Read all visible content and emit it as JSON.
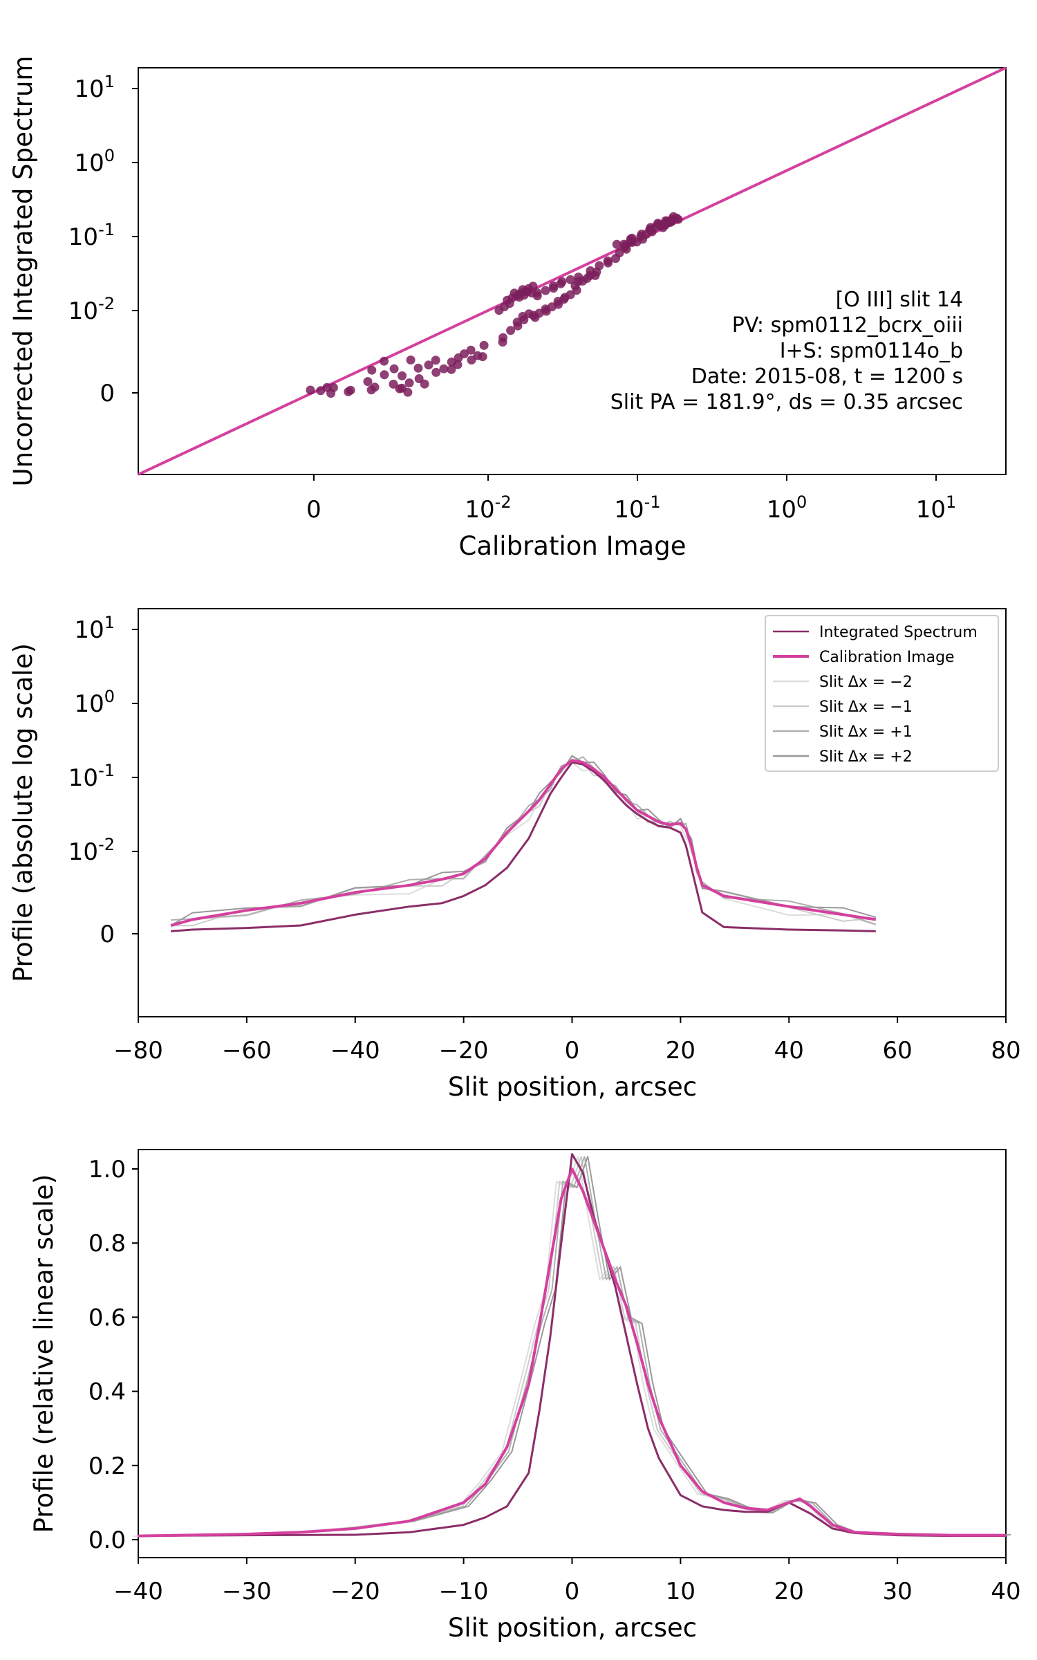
{
  "chart_data": [
    {
      "type": "scatter",
      "xlabel": "Calibration Image",
      "ylabel": "Uncorrected Integrated Spectrum",
      "xscale": "symlog",
      "yscale": "symlog",
      "xticks": [
        "0",
        "10^-2",
        "10^-1",
        "10^0",
        "10^1"
      ],
      "yticks": [
        "0",
        "10^-2",
        "10^-1",
        "10^0",
        "10^1"
      ],
      "annotation": [
        "[O III] slit 14",
        "PV: spm0112_bcrx_oiii",
        "I+S: spm0114o_b",
        "Date: 2015-08, t = 1200 s",
        "Slit PA = 181.9°, ds = 0.35 arcsec"
      ],
      "reference_line": "y = x",
      "colors": {
        "points": "#7b1f5c",
        "line": "#d4409e"
      },
      "points": [
        [
          0.0,
          0.0
        ],
        [
          0.0003,
          0.0006
        ],
        [
          0.0006,
          0.0002
        ],
        [
          0.0009,
          0.0008
        ],
        [
          0.0012,
          0.0004
        ],
        [
          0.0015,
          0.0011
        ],
        [
          0.0018,
          0.0006
        ],
        [
          0.002,
          0.0013
        ],
        [
          0.0022,
          0.0008
        ],
        [
          0.0024,
          0.0015
        ],
        [
          0.0026,
          0.0009
        ],
        [
          0.0028,
          0.0014
        ],
        [
          0.003,
          0.0011
        ],
        [
          0.0033,
          0.0017
        ],
        [
          0.0036,
          0.0012
        ],
        [
          0.004,
          0.0018
        ],
        [
          0.0043,
          0.0014
        ],
        [
          0.0046,
          0.002
        ],
        [
          0.005,
          0.0015
        ],
        [
          0.0054,
          0.0022
        ],
        [
          0.0058,
          0.0017
        ],
        [
          0.0062,
          0.0024
        ],
        [
          0.0066,
          0.0019
        ],
        [
          0.007,
          0.0026
        ],
        [
          0.0075,
          0.0021
        ],
        [
          0.008,
          0.0028
        ],
        [
          0.0085,
          0.0023
        ],
        [
          0.009,
          0.0031
        ],
        [
          0.0095,
          0.0026
        ],
        [
          0.0005,
          0.0009
        ],
        [
          0.0011,
          0.0003
        ],
        [
          0.0017,
          0.0016
        ],
        [
          0.0025,
          0.0005
        ],
        [
          0.0032,
          0.0021
        ],
        [
          0.0038,
          0.0009
        ],
        [
          0.0016,
          0.0001
        ],
        [
          0.0021,
          0.0019
        ],
        [
          0.0029,
          0.0004
        ],
        [
          0.012,
          0.004
        ],
        [
          0.013,
          0.0045
        ],
        [
          0.014,
          0.0055
        ],
        [
          0.015,
          0.0062
        ],
        [
          0.016,
          0.0068
        ],
        [
          0.017,
          0.0072
        ],
        [
          0.018,
          0.0078
        ],
        [
          0.019,
          0.0083
        ],
        [
          0.02,
          0.0088
        ],
        [
          0.021,
          0.0092
        ],
        [
          0.022,
          0.0096
        ],
        [
          0.0235,
          0.01
        ],
        [
          0.025,
          0.0105
        ],
        [
          0.0265,
          0.011
        ],
        [
          0.028,
          0.0116
        ],
        [
          0.03,
          0.0125
        ],
        [
          0.032,
          0.0138
        ],
        [
          0.034,
          0.0155
        ],
        [
          0.036,
          0.0175
        ],
        [
          0.038,
          0.0196
        ],
        [
          0.04,
          0.022
        ],
        [
          0.043,
          0.025
        ],
        [
          0.046,
          0.029
        ],
        [
          0.05,
          0.033
        ],
        [
          0.055,
          0.038
        ],
        [
          0.06,
          0.043
        ],
        [
          0.065,
          0.048
        ],
        [
          0.07,
          0.054
        ],
        [
          0.0125,
          0.0105
        ],
        [
          0.013,
          0.0115
        ],
        [
          0.0135,
          0.0125
        ],
        [
          0.014,
          0.0135
        ],
        [
          0.0145,
          0.0142
        ],
        [
          0.015,
          0.015
        ],
        [
          0.0155,
          0.0158
        ],
        [
          0.016,
          0.0165
        ],
        [
          0.0165,
          0.0172
        ],
        [
          0.017,
          0.018
        ],
        [
          0.0175,
          0.0186
        ],
        [
          0.018,
          0.0192
        ],
        [
          0.0185,
          0.0175
        ],
        [
          0.019,
          0.0165
        ],
        [
          0.0195,
          0.0185
        ],
        [
          0.02,
          0.0196
        ],
        [
          0.0205,
          0.0172
        ],
        [
          0.022,
          0.0185
        ],
        [
          0.024,
          0.0195
        ],
        [
          0.026,
          0.0205
        ],
        [
          0.028,
          0.0215
        ],
        [
          0.03,
          0.0225
        ],
        [
          0.033,
          0.0235
        ],
        [
          0.036,
          0.0245
        ],
        [
          0.039,
          0.026
        ],
        [
          0.042,
          0.027
        ],
        [
          0.046,
          0.029
        ],
        [
          0.05,
          0.031
        ],
        [
          0.055,
          0.034
        ],
        [
          0.075,
          0.06
        ],
        [
          0.08,
          0.066
        ],
        [
          0.085,
          0.072
        ],
        [
          0.09,
          0.078
        ],
        [
          0.095,
          0.085
        ],
        [
          0.1,
          0.092
        ],
        [
          0.105,
          0.098
        ],
        [
          0.11,
          0.105
        ],
        [
          0.115,
          0.11
        ],
        [
          0.12,
          0.116
        ],
        [
          0.125,
          0.122
        ],
        [
          0.13,
          0.128
        ],
        [
          0.135,
          0.133
        ],
        [
          0.14,
          0.139
        ],
        [
          0.145,
          0.144
        ],
        [
          0.15,
          0.149
        ],
        [
          0.155,
          0.154
        ],
        [
          0.16,
          0.158
        ],
        [
          0.165,
          0.162
        ],
        [
          0.17,
          0.166
        ],
        [
          0.175,
          0.17
        ],
        [
          0.18,
          0.174
        ],
        [
          0.072,
          0.072
        ],
        [
          0.078,
          0.078
        ],
        [
          0.083,
          0.084
        ],
        [
          0.088,
          0.089
        ],
        [
          0.097,
          0.097
        ],
        [
          0.108,
          0.108
        ],
        [
          0.118,
          0.12
        ],
        [
          0.128,
          0.127
        ],
        [
          0.138,
          0.137
        ],
        [
          0.148,
          0.15
        ],
        [
          0.158,
          0.155
        ],
        [
          0.168,
          0.17
        ],
        [
          0.178,
          0.178
        ]
      ]
    },
    {
      "type": "line",
      "xlabel": "Slit position, arcsec",
      "ylabel": "Profile (absolute log scale)",
      "xlim": [
        -80,
        80
      ],
      "yscale": "symlog",
      "xticks": [
        "−80",
        "−60",
        "−40",
        "−20",
        "0",
        "20",
        "40",
        "60",
        "80"
      ],
      "yticks": [
        "0",
        "10^-2",
        "10^-1",
        "10^0",
        "10^1"
      ],
      "legend_position": "top-right",
      "legend": [
        {
          "label": "Integrated Spectrum",
          "color": "#8b2d68"
        },
        {
          "label": "Calibration Image",
          "color": "#d4409e"
        },
        {
          "label": "Slit Δx = −2",
          "color": "#dddddd"
        },
        {
          "label": "Slit Δx = −1",
          "color": "#cccccc"
        },
        {
          "label": "Slit Δx = +1",
          "color": "#b0b0b0"
        },
        {
          "label": "Slit Δx = +2",
          "color": "#999999"
        }
      ],
      "series": [
        {
          "name": "Integrated Spectrum",
          "x": [
            -74,
            -70,
            -60,
            -50,
            -40,
            -30,
            -24,
            -20,
            -16,
            -12,
            -8,
            -6,
            -4,
            -2,
            0,
            2,
            4,
            6,
            8,
            10,
            12,
            14,
            16,
            18,
            20,
            21,
            22,
            23,
            24,
            28,
            40,
            50,
            56
          ],
          "y": [
            0.0003,
            0.0005,
            0.0007,
            0.001,
            0.0014,
            0.0018,
            0.002,
            0.0025,
            0.0035,
            0.006,
            0.015,
            0.03,
            0.06,
            0.1,
            0.16,
            0.15,
            0.12,
            0.09,
            0.06,
            0.042,
            0.032,
            0.026,
            0.022,
            0.021,
            0.018,
            0.012,
            0.006,
            0.003,
            0.0015,
            0.0008,
            0.0005,
            0.0004,
            0.0003
          ]
        },
        {
          "name": "Calibration Image",
          "x": [
            -74,
            -70,
            -60,
            -50,
            -40,
            -30,
            -24,
            -20,
            -16,
            -12,
            -8,
            -6,
            -4,
            -2,
            0,
            2,
            4,
            6,
            8,
            10,
            12,
            14,
            16,
            18,
            20,
            21,
            22,
            23,
            24,
            28,
            40,
            50,
            56
          ],
          "y": [
            0.001,
            0.0012,
            0.0016,
            0.002,
            0.0028,
            0.0035,
            0.0042,
            0.005,
            0.008,
            0.018,
            0.035,
            0.05,
            0.08,
            0.13,
            0.17,
            0.16,
            0.13,
            0.1,
            0.07,
            0.05,
            0.036,
            0.03,
            0.025,
            0.023,
            0.024,
            0.02,
            0.012,
            0.006,
            0.0035,
            0.0025,
            0.0018,
            0.0014,
            0.0012
          ]
        }
      ]
    },
    {
      "type": "line",
      "xlabel": "Slit position, arcsec",
      "ylabel": "Profile (relative linear scale)",
      "xlim": [
        -40,
        40
      ],
      "ylim": [
        -0.02,
        1.05
      ],
      "xticks": [
        "−40",
        "−30",
        "−20",
        "−10",
        "0",
        "10",
        "20",
        "30",
        "40"
      ],
      "yticks": [
        "0.0",
        "0.2",
        "0.4",
        "0.6",
        "0.8",
        "1.0"
      ],
      "series": [
        {
          "name": "Integrated Spectrum",
          "x": [
            -40,
            -30,
            -20,
            -15,
            -10,
            -8,
            -6,
            -4,
            -3,
            -2,
            -1,
            0,
            1,
            2,
            3,
            4,
            5,
            6,
            7,
            8,
            10,
            12,
            14,
            16,
            18,
            20,
            22,
            24,
            26,
            30,
            35,
            40
          ],
          "y": [
            0.01,
            0.012,
            0.013,
            0.02,
            0.04,
            0.06,
            0.09,
            0.18,
            0.35,
            0.55,
            0.8,
            1.04,
            0.99,
            0.87,
            0.78,
            0.68,
            0.55,
            0.42,
            0.3,
            0.22,
            0.12,
            0.09,
            0.08,
            0.075,
            0.075,
            0.1,
            0.07,
            0.03,
            0.018,
            0.012,
            0.01,
            0.01
          ]
        },
        {
          "name": "Calibration Image",
          "x": [
            -40,
            -30,
            -25,
            -20,
            -15,
            -10,
            -8,
            -6,
            -4,
            -3,
            -2,
            -1,
            0,
            1,
            2,
            3,
            4,
            5,
            6,
            7,
            8,
            10,
            12,
            14,
            16,
            18,
            20,
            21,
            22,
            24,
            26,
            30,
            35,
            40
          ],
          "y": [
            0.01,
            0.015,
            0.02,
            0.03,
            0.05,
            0.1,
            0.15,
            0.25,
            0.42,
            0.58,
            0.75,
            0.92,
            1.0,
            0.94,
            0.86,
            0.78,
            0.7,
            0.63,
            0.53,
            0.42,
            0.33,
            0.2,
            0.13,
            0.1,
            0.085,
            0.08,
            0.1,
            0.11,
            0.09,
            0.04,
            0.02,
            0.015,
            0.012,
            0.012
          ]
        }
      ]
    }
  ]
}
